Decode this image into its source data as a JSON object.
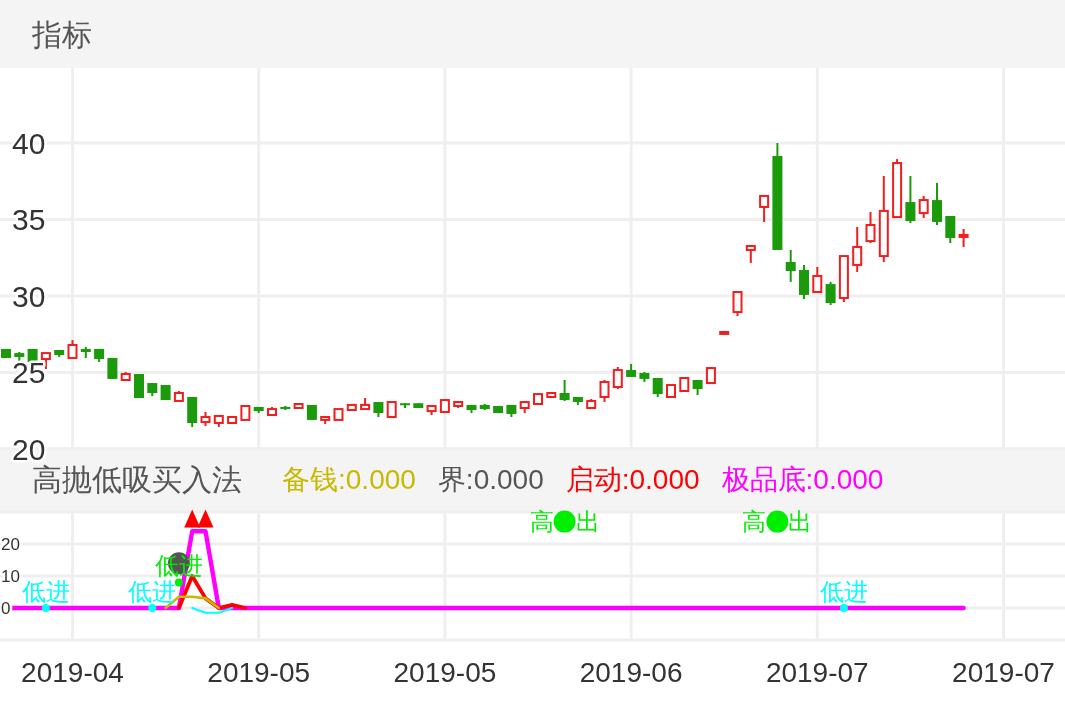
{
  "chart_data": [
    {
      "type": "candlestick",
      "title": "指标",
      "ylim": [
        20,
        40
      ],
      "yticks": [
        20,
        25,
        30,
        35,
        40
      ],
      "grid": true,
      "tick_labels": "y",
      "categories": [
        null,
        null,
        null,
        null,
        null,
        "2019-04",
        null,
        null,
        null,
        null,
        null,
        null,
        null,
        null,
        null,
        null,
        null,
        null,
        null,
        "2019-05",
        null,
        null,
        null,
        null,
        null,
        null,
        null,
        null,
        null,
        null,
        null,
        null,
        null,
        "2019-05",
        null,
        null,
        null,
        null,
        null,
        null,
        null,
        null,
        null,
        null,
        null,
        null,
        null,
        "2019-06",
        null,
        null,
        null,
        null,
        null,
        null,
        null,
        null,
        null,
        null,
        null,
        null,
        null,
        "2019-07",
        null,
        null,
        null,
        null,
        null,
        null,
        null,
        null,
        null,
        null,
        null,
        null,
        null,
        "2019-07",
        null,
        null
      ],
      "ohlc": [
        [
          26.54,
          26.54,
          25.95,
          25.95
        ],
        [
          26.27,
          26.34,
          25.69,
          26.01
        ],
        [
          26.54,
          26.54,
          25.69,
          25.69
        ],
        [
          25.88,
          26.27,
          25.23,
          26.27
        ],
        [
          26.47,
          26.47,
          26.01,
          26.14
        ],
        [
          25.95,
          27.12,
          25.95,
          26.8
        ],
        [
          26.54,
          26.67,
          25.95,
          26.34
        ],
        [
          26.54,
          26.54,
          25.69,
          25.88
        ],
        [
          25.95,
          25.95,
          24.58,
          24.58
        ],
        [
          24.51,
          25.03,
          24.51,
          24.9
        ],
        [
          24.9,
          24.9,
          23.33,
          23.33
        ],
        [
          24.31,
          24.31,
          23.46,
          23.66
        ],
        [
          24.18,
          24.18,
          23.2,
          23.2
        ],
        [
          23.14,
          23.79,
          23.14,
          23.66
        ],
        [
          23.4,
          23.4,
          21.44,
          21.7
        ],
        [
          21.76,
          22.42,
          21.5,
          22.09
        ],
        [
          21.7,
          22.22,
          21.44,
          22.16
        ],
        [
          21.7,
          22.16,
          21.7,
          22.09
        ],
        [
          21.9,
          22.81,
          21.9,
          22.81
        ],
        [
          22.75,
          22.75,
          22.35,
          22.48
        ],
        [
          22.22,
          22.75,
          22.22,
          22.61
        ],
        [
          22.75,
          22.81,
          22.55,
          22.61
        ],
        [
          22.68,
          22.99,
          22.68,
          22.94
        ],
        [
          22.88,
          22.88,
          21.9,
          21.9
        ],
        [
          21.9,
          22.09,
          21.63,
          22.09
        ],
        [
          21.9,
          22.61,
          21.9,
          22.61
        ],
        [
          22.55,
          22.94,
          22.48,
          22.88
        ],
        [
          22.61,
          23.33,
          22.61,
          22.88
        ],
        [
          23.07,
          23.07,
          22.09,
          22.35
        ],
        [
          22.09,
          23.07,
          22.09,
          23.07
        ],
        [
          22.99,
          22.99,
          22.68,
          22.88
        ],
        [
          22.99,
          22.99,
          22.68,
          22.68
        ],
        [
          22.48,
          22.81,
          22.22,
          22.81
        ],
        [
          22.42,
          23.27,
          22.42,
          23.2
        ],
        [
          22.81,
          23.14,
          22.68,
          23.07
        ],
        [
          22.88,
          22.88,
          22.35,
          22.55
        ],
        [
          22.88,
          22.94,
          22.55,
          22.61
        ],
        [
          22.81,
          22.81,
          22.35,
          22.35
        ],
        [
          22.88,
          22.88,
          22.09,
          22.29
        ],
        [
          22.68,
          23.07,
          22.35,
          23.07
        ],
        [
          22.94,
          23.59,
          22.94,
          23.59
        ],
        [
          23.4,
          23.66,
          23.33,
          23.66
        ],
        [
          23.66,
          24.51,
          23.14,
          23.2
        ],
        [
          23.4,
          23.4,
          22.88,
          23.07
        ],
        [
          22.68,
          23.27,
          22.68,
          23.14
        ],
        [
          23.4,
          24.51,
          23.07,
          24.38
        ],
        [
          24.05,
          25.36,
          23.92,
          25.16
        ],
        [
          25.16,
          25.56,
          24.71,
          24.71
        ],
        [
          24.97,
          25.03,
          24.38,
          24.58
        ],
        [
          24.64,
          24.64,
          23.4,
          23.59
        ],
        [
          23.4,
          24.18,
          23.4,
          24.18
        ],
        [
          23.79,
          24.64,
          23.79,
          24.64
        ],
        [
          24.51,
          24.51,
          23.53,
          23.92
        ],
        [
          24.31,
          25.36,
          24.31,
          25.29
        ],
        [
          27.52,
          27.65,
          27.52,
          27.65
        ],
        [
          28.95,
          30.26,
          28.69,
          30.26
        ],
        [
          33.01,
          33.27,
          32.16,
          33.27
        ],
        [
          35.82,
          36.54,
          34.84,
          36.54
        ],
        [
          39.15,
          40.0,
          33.01,
          33.01
        ],
        [
          32.22,
          33.01,
          30.92,
          31.63
        ],
        [
          31.7,
          32.03,
          29.8,
          30.07
        ],
        [
          30.26,
          31.9,
          30.26,
          31.31
        ],
        [
          30.78,
          30.92,
          29.41,
          29.54
        ],
        [
          29.87,
          32.61,
          29.61,
          32.61
        ],
        [
          32.03,
          34.51,
          31.57,
          33.2
        ],
        [
          33.59,
          35.49,
          33.46,
          34.64
        ],
        [
          32.61,
          37.84,
          32.22,
          35.56
        ],
        [
          35.16,
          38.95,
          35.16,
          38.69
        ],
        [
          36.14,
          37.84,
          34.77,
          34.9
        ],
        [
          35.42,
          36.54,
          35.1,
          36.27
        ],
        [
          36.27,
          37.39,
          34.64,
          34.84
        ],
        [
          35.23,
          35.23,
          33.46,
          33.79
        ],
        [
          33.86,
          34.38,
          33.2,
          33.99
        ],
        null,
        null,
        null,
        null,
        null
      ],
      "colors": [
        "#1b9a0b",
        "#1b9a0b",
        "#1b9a0b",
        "#f21d1d",
        "#1b9a0b",
        "#f21d1d",
        "#1b9a0b",
        "#1b9a0b",
        "#1b9a0b",
        "#f21d1d",
        "#1b9a0b",
        "#1b9a0b",
        "#1b9a0b",
        "#f21d1d",
        "#1b9a0b",
        "#f21d1d",
        "#f21d1d",
        "#f21d1d",
        "#f21d1d",
        "#1b9a0b",
        "#f21d1d",
        "#1b9a0b",
        "#f21d1d",
        "#1b9a0b",
        "#f21d1d",
        "#f21d1d",
        "#f21d1d",
        "#f21d1d",
        "#1b9a0b",
        "#f21d1d",
        "#1b9a0b",
        "#1b9a0b",
        "#f21d1d",
        "#f21d1d",
        "#f21d1d",
        "#1b9a0b",
        "#1b9a0b",
        "#1b9a0b",
        "#1b9a0b",
        "#f21d1d",
        "#f21d1d",
        "#f21d1d",
        "#1b9a0b",
        "#1b9a0b",
        "#f21d1d",
        "#f21d1d",
        "#f21d1d",
        "#1b9a0b",
        "#1b9a0b",
        "#1b9a0b",
        "#f21d1d",
        "#f21d1d",
        "#1b9a0b",
        "#f21d1d",
        "#f21d1d",
        "#f21d1d",
        "#f21d1d",
        "#f21d1d",
        "#1b9a0b",
        "#1b9a0b",
        "#1b9a0b",
        "#f21d1d",
        "#1b9a0b",
        "#f21d1d",
        "#f21d1d",
        "#f21d1d",
        "#f21d1d",
        "#f21d1d",
        "#1b9a0b",
        "#f21d1d",
        "#1b9a0b",
        "#1b9a0b",
        "#f21d1d",
        null,
        null,
        null,
        null,
        null
      ]
    },
    {
      "type": "line",
      "title": "高抛低吸买入法",
      "ylim": [
        -10,
        30
      ],
      "yticks": [
        {
          "value": -10,
          "label": null
        },
        0,
        10,
        20,
        {
          "value": 30,
          "label": null
        }
      ],
      "grid": true,
      "legend": "top",
      "line_style": "solid",
      "categories": [
        null,
        null,
        null,
        null,
        null,
        "2019-04",
        null,
        null,
        null,
        null,
        null,
        null,
        null,
        null,
        null,
        null,
        null,
        null,
        null,
        "2019-05",
        null,
        null,
        null,
        null,
        null,
        null,
        null,
        null,
        null,
        null,
        null,
        null,
        null,
        "2019-05",
        null,
        null,
        null,
        null,
        null,
        null,
        null,
        null,
        null,
        null,
        null,
        null,
        null,
        "2019-06",
        null,
        null,
        null,
        null,
        null,
        null,
        null,
        null,
        null,
        null,
        null,
        null,
        null,
        "2019-07",
        null,
        null,
        null,
        null,
        null,
        null,
        null,
        null,
        null,
        null,
        null,
        null,
        null,
        "2019-07",
        null,
        null
      ],
      "series": [
        {
          "color": "#00ffff",
          "values": [
            null,
            null,
            null,
            null,
            null,
            null,
            null,
            null,
            null,
            null,
            null,
            null,
            null,
            null,
            0,
            -1.5,
            -1.5,
            0,
            null,
            null,
            null,
            null,
            null,
            null,
            null,
            null,
            null,
            null,
            null,
            null,
            null,
            null,
            null,
            null,
            null,
            null,
            null,
            null,
            null,
            null,
            null,
            null,
            null,
            null,
            null,
            null,
            null,
            null,
            null,
            null,
            null,
            null,
            null,
            null,
            null,
            null,
            null,
            null,
            null,
            null,
            null,
            null,
            null,
            null,
            null,
            null,
            null,
            null,
            null,
            null,
            null,
            null,
            null,
            null,
            null,
            null,
            null,
            null
          ]
        },
        {
          "name": "备钱:0.000",
          "color": "#c9b800",
          "values": [
            null,
            null,
            null,
            null,
            null,
            null,
            null,
            null,
            null,
            null,
            null,
            null,
            0,
            3.5,
            3.5,
            3,
            0,
            null,
            null,
            null,
            null,
            null,
            null,
            null,
            null,
            null,
            null,
            null,
            null,
            null,
            null,
            null,
            null,
            null,
            null,
            null,
            null,
            null,
            null,
            null,
            null,
            null,
            null,
            null,
            null,
            null,
            null,
            null,
            null,
            null,
            null,
            null,
            null,
            null,
            null,
            null,
            null,
            null,
            null,
            null,
            null,
            null,
            null,
            null,
            null,
            null,
            null,
            null,
            null,
            null,
            null,
            null,
            null,
            null,
            null,
            null,
            null,
            null
          ]
        },
        {
          "name": "界:0.000",
          "color": "#555555",
          "values": [
            null,
            null,
            null,
            null,
            null,
            null,
            null,
            null,
            null,
            null,
            null,
            null,
            null,
            null,
            null,
            null,
            null,
            null,
            null,
            null,
            null,
            null,
            null,
            null,
            null,
            null,
            null,
            null,
            null,
            null,
            null,
            null,
            null,
            null,
            null,
            null,
            null,
            null,
            null,
            null,
            null,
            null,
            null,
            null,
            null,
            null,
            null,
            null,
            null,
            null,
            null,
            null,
            null,
            null,
            null,
            null,
            null,
            null,
            null,
            null,
            null,
            null,
            null,
            null,
            null,
            null,
            null,
            null,
            null,
            null,
            null,
            null,
            null,
            null,
            null,
            null,
            null,
            null
          ]
        },
        {
          "name": "启动:0.000",
          "color": "#ff0000",
          "values": [
            null,
            null,
            null,
            null,
            null,
            null,
            null,
            null,
            null,
            null,
            null,
            null,
            null,
            0,
            10,
            3,
            0,
            1,
            0,
            null,
            null,
            null,
            null,
            null,
            null,
            null,
            null,
            null,
            null,
            null,
            null,
            null,
            null,
            null,
            null,
            null,
            null,
            null,
            null,
            null,
            null,
            null,
            null,
            null,
            null,
            null,
            null,
            null,
            null,
            null,
            null,
            null,
            null,
            null,
            null,
            null,
            null,
            null,
            null,
            null,
            null,
            null,
            null,
            null,
            null,
            null,
            null,
            null,
            null,
            null,
            null,
            null,
            null,
            null,
            null,
            null,
            null,
            null
          ]
        },
        {
          "name": "极品底:0.000",
          "color": "#ff00ff",
          "values": [
            0,
            0,
            0,
            0,
            0,
            0,
            0,
            0,
            0,
            0,
            0,
            0,
            0,
            0,
            24,
            24,
            0,
            0,
            0,
            0,
            0,
            0,
            0,
            0,
            0,
            0,
            0,
            0,
            0,
            0,
            0,
            0,
            0,
            0,
            0,
            0,
            0,
            0,
            0,
            0,
            0,
            0,
            0,
            0,
            0,
            0,
            0,
            0,
            0,
            0,
            0,
            0,
            0,
            0,
            0,
            0,
            0,
            0,
            0,
            0,
            0,
            0,
            0,
            0,
            0,
            0,
            0,
            0,
            0,
            0,
            0,
            0,
            0,
            null,
            null,
            null,
            null,
            null
          ]
        },
        {
          "type": "scatter",
          "color": "#555555",
          "marker": "circle",
          "values": [
            null,
            null,
            null,
            null,
            null,
            null,
            null,
            null,
            null,
            null,
            null,
            null,
            null,
            14,
            null,
            null,
            null,
            null,
            null,
            null,
            null,
            null,
            null,
            null,
            null,
            null,
            null,
            null,
            null,
            null,
            null,
            null,
            null,
            null,
            null,
            null,
            null,
            null,
            null,
            null,
            null,
            null,
            null,
            null,
            null,
            null,
            null,
            null,
            null,
            null,
            null,
            null,
            null,
            null,
            null,
            null,
            null,
            null,
            null,
            null,
            null,
            null,
            null,
            null,
            null,
            null,
            null,
            null,
            null,
            null,
            null,
            null,
            null,
            null,
            null,
            null,
            null,
            null
          ]
        },
        {
          "type": "scatter",
          "color": "#00ffff",
          "marker": "circle",
          "values": [
            null,
            null,
            null,
            0,
            null,
            null,
            null,
            null,
            null,
            null,
            null,
            0,
            null,
            null,
            null,
            null,
            null,
            null,
            null,
            null,
            null,
            null,
            null,
            null,
            null,
            null,
            null,
            null,
            null,
            null,
            null,
            null,
            null,
            null,
            null,
            null,
            null,
            null,
            null,
            null,
            null,
            null,
            null,
            null,
            null,
            null,
            null,
            null,
            null,
            null,
            null,
            null,
            null,
            null,
            null,
            null,
            null,
            null,
            null,
            null,
            null,
            null,
            null,
            0,
            null,
            null,
            null,
            null,
            null,
            null,
            null,
            null,
            null,
            null,
            null,
            null,
            null,
            null
          ],
          "value_labels": [
            null,
            null,
            null,
            "低进",
            null,
            null,
            null,
            null,
            null,
            null,
            null,
            "低进",
            null,
            null,
            null,
            null,
            null,
            null,
            null,
            null,
            null,
            null,
            null,
            null,
            null,
            null,
            null,
            null,
            null,
            null,
            null,
            null,
            null,
            null,
            null,
            null,
            null,
            null,
            null,
            null,
            null,
            null,
            null,
            null,
            null,
            null,
            null,
            null,
            null,
            null,
            null,
            null,
            null,
            null,
            null,
            null,
            null,
            null,
            null,
            null,
            null,
            null,
            null,
            "低进",
            null,
            null,
            null,
            null,
            null,
            null,
            null,
            null,
            null,
            null,
            null,
            null,
            null,
            null
          ]
        },
        {
          "type": "scatter",
          "color": "#00ee00",
          "marker": "circle",
          "values": [
            null,
            null,
            null,
            null,
            null,
            null,
            null,
            null,
            null,
            null,
            null,
            null,
            null,
            8,
            null,
            null,
            null,
            null,
            null,
            null,
            null,
            null,
            null,
            null,
            null,
            null,
            null,
            null,
            null,
            null,
            null,
            null,
            null,
            null,
            null,
            null,
            null,
            null,
            null,
            null,
            null,
            null,
            null,
            null,
            null,
            null,
            null,
            null,
            null,
            null,
            null,
            null,
            null,
            null,
            null,
            null,
            null,
            null,
            null,
            null,
            null,
            null,
            null,
            null,
            null,
            null,
            null,
            null,
            null,
            null,
            null,
            null,
            null,
            null,
            null,
            null,
            null,
            null
          ],
          "value_labels": [
            null,
            null,
            null,
            null,
            null,
            null,
            null,
            null,
            null,
            null,
            null,
            null,
            null,
            "低进",
            null,
            null,
            null,
            null,
            null,
            null,
            null,
            null,
            null,
            null,
            null,
            null,
            null,
            null,
            null,
            null,
            null,
            null,
            null,
            null,
            null,
            null,
            null,
            null,
            null,
            null,
            null,
            null,
            null,
            null,
            null,
            null,
            null,
            null,
            null,
            null,
            null,
            null,
            null,
            null,
            null,
            null,
            null,
            null,
            null,
            null,
            null,
            null,
            null,
            null,
            null,
            null,
            null,
            null,
            null,
            null,
            null,
            null,
            null,
            null,
            null,
            null,
            null,
            null
          ]
        },
        {
          "type": "scatter",
          "color": "#ff0000",
          "marker": "triangle",
          "values": [
            null,
            null,
            null,
            null,
            null,
            null,
            null,
            null,
            null,
            null,
            null,
            null,
            null,
            null,
            28,
            28,
            null,
            null,
            null,
            null,
            null,
            null,
            null,
            null,
            null,
            null,
            null,
            null,
            null,
            null,
            null,
            null,
            null,
            null,
            null,
            null,
            null,
            null,
            null,
            null,
            null,
            null,
            null,
            null,
            null,
            null,
            null,
            null,
            null,
            null,
            null,
            null,
            null,
            null,
            null,
            null,
            null,
            null,
            null,
            null,
            null,
            null,
            null,
            null,
            null,
            null,
            null,
            null,
            null,
            null,
            null,
            null,
            null,
            null,
            null,
            null,
            null,
            null
          ]
        },
        {
          "type": "scatter",
          "color": "#00ee00",
          "marker": "circle",
          "values": [
            null,
            null,
            null,
            null,
            null,
            null,
            null,
            null,
            null,
            null,
            null,
            null,
            null,
            null,
            null,
            null,
            null,
            null,
            null,
            null,
            null,
            null,
            null,
            null,
            null,
            null,
            null,
            null,
            null,
            null,
            null,
            null,
            null,
            null,
            null,
            null,
            null,
            null,
            null,
            null,
            null,
            null,
            27,
            null,
            null,
            null,
            null,
            null,
            null,
            null,
            null,
            null,
            null,
            null,
            null,
            null,
            null,
            null,
            27,
            null,
            null,
            null,
            null,
            null,
            null,
            null,
            null,
            null,
            null,
            null,
            null,
            null,
            null,
            null,
            null,
            null,
            null,
            null
          ],
          "value_labels": [
            null,
            null,
            null,
            null,
            null,
            null,
            null,
            null,
            null,
            null,
            null,
            null,
            null,
            null,
            null,
            null,
            null,
            null,
            null,
            null,
            null,
            null,
            null,
            null,
            null,
            null,
            null,
            null,
            null,
            null,
            null,
            null,
            null,
            null,
            null,
            null,
            null,
            null,
            null,
            null,
            null,
            null,
            "高出",
            null,
            null,
            null,
            null,
            null,
            null,
            null,
            null,
            null,
            null,
            null,
            null,
            null,
            null,
            null,
            "高出",
            null,
            null,
            null,
            null,
            null,
            null,
            null,
            null,
            null,
            null,
            null,
            null,
            null,
            null,
            null,
            null,
            null,
            null,
            null
          ]
        }
      ]
    }
  ]
}
